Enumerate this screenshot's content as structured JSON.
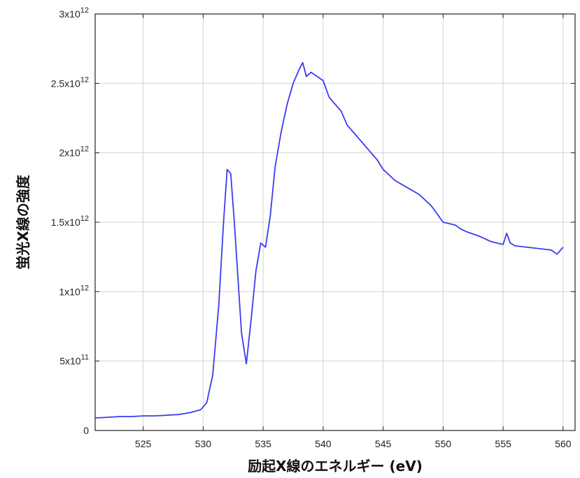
{
  "chart_data": {
    "type": "line",
    "xlabel": "励起X線のエネルギー (eV)",
    "ylabel": "蛍光X線の強度",
    "xlim": [
      521,
      561
    ],
    "ylim": [
      0,
      3000000000000
    ],
    "x_ticks": [
      525,
      530,
      535,
      540,
      545,
      550,
      555,
      560
    ],
    "y_ticks": [
      {
        "value": 0,
        "mantissa": "0",
        "exp": ""
      },
      {
        "value": 500000000000,
        "mantissa": "5x10",
        "exp": "11"
      },
      {
        "value": 1000000000000,
        "mantissa": "1x10",
        "exp": "12"
      },
      {
        "value": 1500000000000,
        "mantissa": "1.5x10",
        "exp": "12"
      },
      {
        "value": 2000000000000,
        "mantissa": "2x10",
        "exp": "12"
      },
      {
        "value": 2500000000000,
        "mantissa": "2.5x10",
        "exp": "12"
      },
      {
        "value": 3000000000000,
        "mantissa": "3x10",
        "exp": "12"
      }
    ],
    "grid": true,
    "line_color": "#3b3bf0",
    "series": [
      {
        "x": [
          521,
          522,
          523,
          524,
          525,
          526,
          527,
          528,
          529,
          529.8,
          530.3,
          530.8,
          531.3,
          531.7,
          532.0,
          532.3,
          532.6,
          532.9,
          533.2,
          533.6,
          534.0,
          534.4,
          534.8,
          535.2,
          535.6,
          536.0,
          536.5,
          537.0,
          537.5,
          538.0,
          538.3,
          538.6,
          539.0,
          539.5,
          540.0,
          540.5,
          541.0,
          541.5,
          542.0,
          542.5,
          543.0,
          543.5,
          544.0,
          544.5,
          545.0,
          546.0,
          547.0,
          548.0,
          549.0,
          549.5,
          550.0,
          551.0,
          551.5,
          552.0,
          553.0,
          554.0,
          555.0,
          555.3,
          555.6,
          556.0,
          557.0,
          558.0,
          559.0,
          559.5,
          560.0
        ],
        "y": [
          90000000000,
          95000000000,
          100000000000,
          100000000000,
          105000000000,
          105000000000,
          110000000000,
          115000000000,
          130000000000,
          150000000000,
          200000000000,
          400000000000,
          900000000000,
          1500000000000,
          1880000000000,
          1850000000000,
          1500000000000,
          1100000000000,
          700000000000,
          480000000000,
          800000000000,
          1150000000000,
          1350000000000,
          1320000000000,
          1550000000000,
          1900000000000,
          2150000000000,
          2350000000000,
          2500000000000,
          2600000000000,
          2650000000000,
          2550000000000,
          2580000000000,
          2550000000000,
          2520000000000,
          2400000000000,
          2350000000000,
          2300000000000,
          2200000000000,
          2150000000000,
          2100000000000,
          2050000000000,
          2000000000000,
          1950000000000,
          1880000000000,
          1800000000000,
          1750000000000,
          1700000000000,
          1620000000000,
          1560000000000,
          1500000000000,
          1480000000000,
          1450000000000,
          1430000000000,
          1400000000000,
          1360000000000,
          1340000000000,
          1420000000000,
          1350000000000,
          1330000000000,
          1320000000000,
          1310000000000,
          1300000000000,
          1270000000000,
          1320000000000
        ]
      }
    ]
  }
}
